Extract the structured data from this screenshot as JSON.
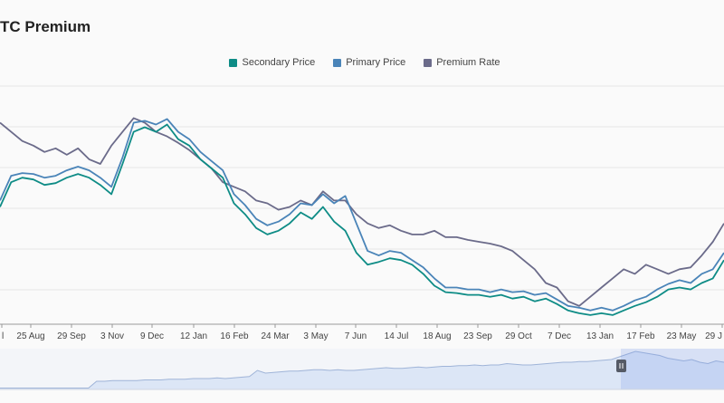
{
  "chart_data": {
    "type": "line",
    "title": "TC Premium",
    "legend_position": "top-center",
    "grid": true,
    "x_labels": [
      "l",
      "25 Aug",
      "29 Sep",
      "3 Nov",
      "9 Dec",
      "12 Jan",
      "16 Feb",
      "24 Mar",
      "3 May",
      "7 Jun",
      "14 Jul",
      "18 Aug",
      "23 Sep",
      "29 Oct",
      "7 Dec",
      "13 Jan",
      "17 Feb",
      "23 May",
      "29 J"
    ],
    "series": [
      {
        "name": "Secondary Price",
        "color": "#0e8c86",
        "values": [
          232,
          205,
          200,
          202,
          208,
          206,
          200,
          196,
          200,
          208,
          218,
          185,
          150,
          145,
          150,
          142,
          158,
          165,
          180,
          190,
          200,
          228,
          240,
          255,
          262,
          258,
          250,
          238,
          245,
          232,
          248,
          258,
          282,
          295,
          292,
          288,
          290,
          295,
          305,
          318,
          325,
          326,
          328,
          328,
          330,
          328,
          332,
          330,
          335,
          332,
          338,
          345,
          348,
          350,
          348,
          350,
          345,
          340,
          336,
          330,
          322,
          320,
          322,
          315,
          310,
          290
        ]
      },
      {
        "name": "Primary Price",
        "color": "#4a84b8",
        "values": [
          225,
          198,
          195,
          196,
          200,
          198,
          192,
          188,
          192,
          200,
          210,
          178,
          140,
          138,
          142,
          136,
          150,
          158,
          172,
          182,
          192,
          218,
          230,
          245,
          252,
          248,
          240,
          228,
          230,
          218,
          228,
          220,
          250,
          280,
          285,
          280,
          282,
          290,
          298,
          310,
          320,
          320,
          322,
          322,
          325,
          322,
          325,
          324,
          328,
          326,
          333,
          340,
          342,
          345,
          342,
          345,
          340,
          334,
          330,
          322,
          316,
          312,
          315,
          305,
          300,
          282
        ]
      },
      {
        "name": "Premium Rate",
        "color": "#6b6b8a",
        "values": [
          140,
          150,
          160,
          165,
          172,
          168,
          175,
          168,
          180,
          185,
          165,
          150,
          135,
          140,
          150,
          155,
          162,
          170,
          180,
          190,
          205,
          210,
          215,
          225,
          228,
          235,
          232,
          225,
          230,
          215,
          225,
          225,
          240,
          250,
          255,
          252,
          258,
          262,
          262,
          258,
          265,
          265,
          268,
          270,
          272,
          275,
          280,
          290,
          300,
          315,
          320,
          335,
          340,
          330,
          320,
          310,
          300,
          305,
          295,
          300,
          305,
          300,
          298,
          285,
          270,
          250
        ]
      }
    ],
    "navigator": {
      "values": [
        2,
        2,
        2,
        2,
        2,
        2,
        2,
        2,
        2,
        2,
        2,
        2,
        12,
        12,
        13,
        13,
        13,
        13,
        14,
        14,
        14,
        15,
        15,
        15,
        16,
        16,
        16,
        17,
        16,
        17,
        18,
        19,
        28,
        24,
        25,
        26,
        27,
        27,
        28,
        29,
        29,
        28,
        29,
        28,
        28,
        29,
        30,
        31,
        32,
        31,
        31,
        32,
        33,
        32,
        33,
        34,
        34,
        35,
        35,
        36,
        35,
        36,
        36,
        38,
        37,
        36,
        36,
        37,
        38,
        39,
        40,
        40,
        41,
        41,
        42,
        43,
        44,
        48,
        52,
        56,
        54,
        52,
        50,
        46,
        44,
        42,
        44,
        40,
        38,
        42,
        40
      ]
    }
  }
}
